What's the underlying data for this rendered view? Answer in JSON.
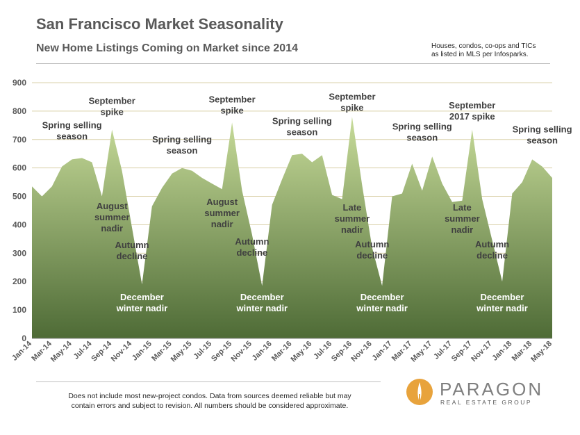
{
  "header": {
    "title": "San Francisco Market Seasonality",
    "subtitle": "New Home Listings Coming on Market since 2014",
    "source_note": [
      "Houses, condos, co-ops and TICs",
      "as listed in MLS per Infosparks."
    ]
  },
  "footer": {
    "disclaimer": [
      "Does not include most new-project condos. Data from sources deemed reliable but may",
      "contain errors and subject to revision.  All numbers should be considered approximate."
    ]
  },
  "logo": {
    "name": "PARAGON",
    "tagline": "REAL ESTATE GROUP",
    "accent": "#e8a33c"
  },
  "colors": {
    "area_top": "#c8dc9a",
    "area_bottom": "#4e6b36",
    "grid": "#d9d0a8",
    "axis_text": "#595959",
    "annotation": "#404040",
    "annotation_white": "#ffffff"
  },
  "chart_data": {
    "type": "area",
    "ylim": [
      0,
      900
    ],
    "yticks": [
      0,
      100,
      200,
      300,
      400,
      500,
      600,
      700,
      800,
      900
    ],
    "grid": true,
    "x_tick_labels": [
      "Jan-14",
      "Mar-14",
      "May-14",
      "Jul-14",
      "Sep-14",
      "Nov-14",
      "Jan-15",
      "Mar-15",
      "May-15",
      "Jul-15",
      "Sep-15",
      "Nov-15",
      "Jan-16",
      "Mar-16",
      "May-16",
      "Jul-16",
      "Sep-16",
      "Nov-16",
      "Jan-17",
      "Mar-17",
      "May-17",
      "Jul-17",
      "Sep-17",
      "Nov-17",
      "Jan-18",
      "Mar-18",
      "May-18"
    ],
    "x": [
      "Jan-14",
      "Feb-14",
      "Mar-14",
      "Apr-14",
      "May-14",
      "Jun-14",
      "Jul-14",
      "Aug-14",
      "Sep-14",
      "Oct-14",
      "Nov-14",
      "Dec-14",
      "Jan-15",
      "Feb-15",
      "Mar-15",
      "Apr-15",
      "May-15",
      "Jun-15",
      "Jul-15",
      "Aug-15",
      "Sep-15",
      "Oct-15",
      "Nov-15",
      "Dec-15",
      "Jan-16",
      "Feb-16",
      "Mar-16",
      "Apr-16",
      "May-16",
      "Jun-16",
      "Jul-16",
      "Aug-16",
      "Sep-16",
      "Oct-16",
      "Nov-16",
      "Dec-16",
      "Jan-17",
      "Feb-17",
      "Mar-17",
      "Apr-17",
      "May-17",
      "Jun-17",
      "Jul-17",
      "Aug-17",
      "Sep-17",
      "Oct-17",
      "Nov-17",
      "Dec-17",
      "Jan-18",
      "Feb-18",
      "Mar-18",
      "Apr-18",
      "May-18"
    ],
    "values": [
      535,
      500,
      535,
      605,
      630,
      635,
      620,
      500,
      735,
      590,
      390,
      190,
      465,
      530,
      580,
      600,
      590,
      565,
      545,
      525,
      760,
      520,
      365,
      185,
      470,
      560,
      645,
      650,
      620,
      645,
      505,
      490,
      780,
      540,
      320,
      185,
      500,
      510,
      615,
      520,
      640,
      545,
      480,
      485,
      735,
      490,
      345,
      200,
      510,
      550,
      630,
      605,
      565
    ],
    "annotations": [
      {
        "lines": [
          "Spring selling",
          "season"
        ],
        "x": "May-14",
        "y": 740,
        "color": "dark"
      },
      {
        "lines": [
          "September",
          "spike"
        ],
        "x": "Sep-14",
        "y": 825,
        "color": "dark"
      },
      {
        "lines": [
          "August",
          "summer",
          "nadir"
        ],
        "x": "Sep-14",
        "y": 455,
        "color": "dark"
      },
      {
        "lines": [
          "Autumn",
          "decline"
        ],
        "x": "Nov-14",
        "y": 318,
        "color": "dark"
      },
      {
        "lines": [
          "December",
          "winter nadir"
        ],
        "x": "Dec-14",
        "y": 135,
        "color": "white"
      },
      {
        "lines": [
          "Spring selling",
          "season"
        ],
        "x": "Apr-15",
        "y": 690,
        "color": "dark"
      },
      {
        "lines": [
          "September",
          "spike"
        ],
        "x": "Sep-15",
        "y": 830,
        "color": "dark"
      },
      {
        "lines": [
          "August",
          "summer",
          "nadir"
        ],
        "x": "Aug-15",
        "y": 470,
        "color": "dark"
      },
      {
        "lines": [
          "Autumn",
          "decline"
        ],
        "x": "Nov-15",
        "y": 330,
        "color": "dark"
      },
      {
        "lines": [
          "December",
          "winter nadir"
        ],
        "x": "Dec-15",
        "y": 135,
        "color": "white"
      },
      {
        "lines": [
          "Spring selling",
          "season"
        ],
        "x": "Apr-16",
        "y": 755,
        "color": "dark"
      },
      {
        "lines": [
          "September",
          "spike"
        ],
        "x": "Sep-16",
        "y": 840,
        "color": "dark"
      },
      {
        "lines": [
          "Late",
          "summer",
          "nadir"
        ],
        "x": "Sep-16",
        "y": 450,
        "color": "dark"
      },
      {
        "lines": [
          "Autumn",
          "decline"
        ],
        "x": "Nov-16",
        "y": 320,
        "color": "dark"
      },
      {
        "lines": [
          "December",
          "winter nadir"
        ],
        "x": "Dec-16",
        "y": 135,
        "color": "white"
      },
      {
        "lines": [
          "Spring selling",
          "season"
        ],
        "x": "Apr-17",
        "y": 735,
        "color": "dark"
      },
      {
        "lines": [
          "September",
          "2017 spike"
        ],
        "x": "Sep-17",
        "y": 810,
        "color": "dark"
      },
      {
        "lines": [
          "Late",
          "summer",
          "nadir"
        ],
        "x": "Aug-17",
        "y": 450,
        "color": "dark"
      },
      {
        "lines": [
          "Autumn",
          "decline"
        ],
        "x": "Nov-17",
        "y": 320,
        "color": "dark"
      },
      {
        "lines": [
          "December",
          "winter nadir"
        ],
        "x": "Dec-17",
        "y": 135,
        "color": "white"
      },
      {
        "lines": [
          "Spring selling",
          "season"
        ],
        "x": "Apr-18",
        "y": 725,
        "color": "dark"
      }
    ]
  }
}
